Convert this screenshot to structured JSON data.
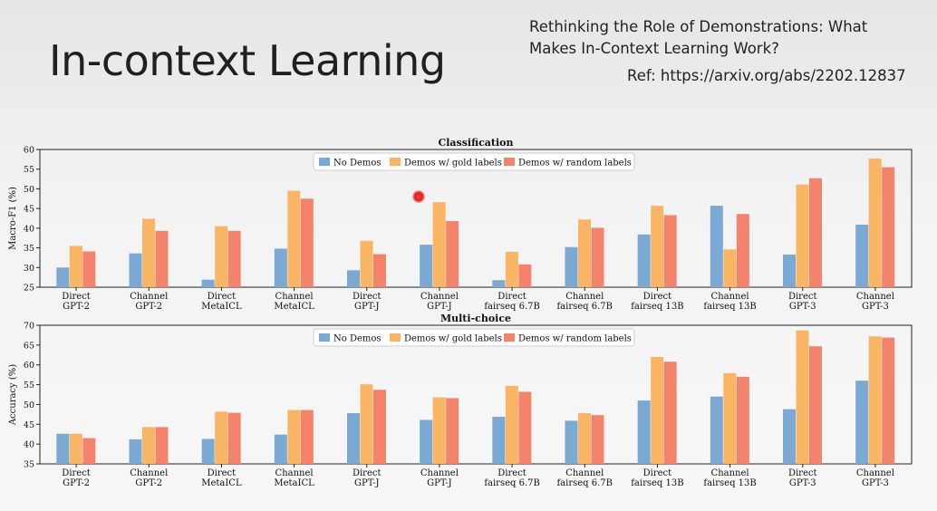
{
  "slide": {
    "title": "In-context Learning",
    "paper_title": "Rethinking the Role of Demonstrations: What Makes In-Context Learning Work?",
    "ref": "Ref: https://arxiv.org/abs/2202.12837"
  },
  "colors": {
    "no_demos": "#7aa9d4",
    "gold": "#f9b563",
    "random": "#f4836b"
  },
  "chart_data": [
    {
      "type": "bar",
      "title": "Classification",
      "ylabel": "Macro-F1 (%)",
      "xlabel": "",
      "ylim": [
        25,
        60
      ],
      "yticks": [
        25,
        30,
        35,
        40,
        45,
        50,
        55,
        60
      ],
      "legend": "top-center",
      "categories": [
        [
          "Direct",
          "GPT-2"
        ],
        [
          "Channel",
          "GPT-2"
        ],
        [
          "Direct",
          "MetaICL"
        ],
        [
          "Channel",
          "MetaICL"
        ],
        [
          "Direct",
          "GPT-J"
        ],
        [
          "Channel",
          "GPT-J"
        ],
        [
          "Direct",
          "fairseq 6.7B"
        ],
        [
          "Channel",
          "fairseq 6.7B"
        ],
        [
          "Direct",
          "fairseq 13B"
        ],
        [
          "Channel",
          "fairseq 13B"
        ],
        [
          "Direct",
          "GPT-3"
        ],
        [
          "Channel",
          "GPT-3"
        ]
      ],
      "series": [
        {
          "name": "No Demos",
          "values": [
            30.0,
            33.6,
            26.9,
            34.8,
            29.3,
            35.8,
            26.8,
            35.2,
            38.4,
            45.7,
            33.3,
            40.9
          ]
        },
        {
          "name": "Demos w/ gold labels",
          "values": [
            35.5,
            42.4,
            40.5,
            49.5,
            36.8,
            46.6,
            34.0,
            42.2,
            45.7,
            34.6,
            51.1,
            57.7
          ]
        },
        {
          "name": "Demos w/ random labels",
          "values": [
            34.1,
            39.3,
            39.3,
            47.5,
            33.4,
            41.8,
            30.8,
            40.1,
            43.3,
            43.6,
            52.7,
            55.5
          ]
        }
      ]
    },
    {
      "type": "bar",
      "title": "Multi-choice",
      "ylabel": "Accuracy (%)",
      "xlabel": "",
      "ylim": [
        35,
        70
      ],
      "yticks": [
        35,
        40,
        45,
        50,
        55,
        60,
        65,
        70
      ],
      "legend": "top-center",
      "categories": [
        [
          "Direct",
          "GPT-2"
        ],
        [
          "Channel",
          "GPT-2"
        ],
        [
          "Direct",
          "MetaICL"
        ],
        [
          "Channel",
          "MetaICL"
        ],
        [
          "Direct",
          "GPT-J"
        ],
        [
          "Channel",
          "GPT-J"
        ],
        [
          "Direct",
          "fairseq 6.7B"
        ],
        [
          "Channel",
          "fairseq 6.7B"
        ],
        [
          "Direct",
          "fairseq 13B"
        ],
        [
          "Channel",
          "fairseq 13B"
        ],
        [
          "Direct",
          "GPT-3"
        ],
        [
          "Channel",
          "GPT-3"
        ]
      ],
      "series": [
        {
          "name": "No Demos",
          "values": [
            42.6,
            41.2,
            41.3,
            42.4,
            47.8,
            46.1,
            46.9,
            45.9,
            51.0,
            52.0,
            48.8,
            56.0
          ]
        },
        {
          "name": "Demos w/ gold labels",
          "values": [
            42.6,
            44.3,
            48.2,
            48.6,
            55.1,
            51.8,
            54.7,
            47.8,
            62.0,
            57.9,
            68.7,
            67.2
          ]
        },
        {
          "name": "Demos w/ random labels",
          "values": [
            41.5,
            44.3,
            47.9,
            48.6,
            53.7,
            51.6,
            53.2,
            47.3,
            60.8,
            57.0,
            64.7,
            66.9
          ]
        }
      ]
    }
  ]
}
